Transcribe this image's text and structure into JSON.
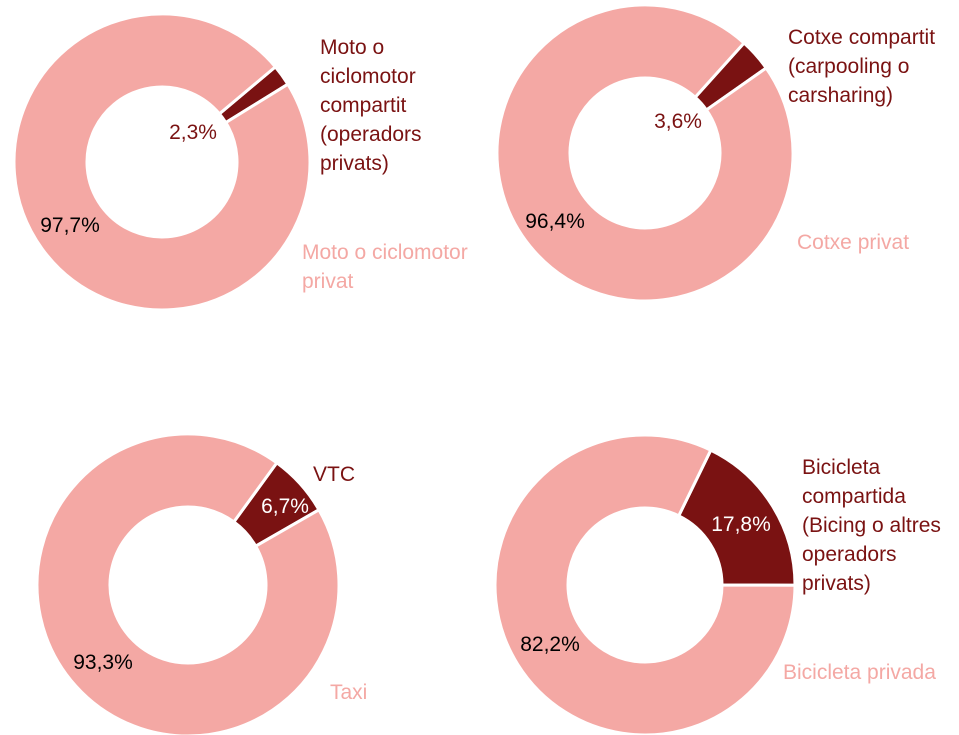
{
  "chart_data": [
    {
      "type": "pie",
      "categories": [
        "Moto o ciclomotor compartit (operadors privats)",
        "Moto o ciclomotor privat"
      ],
      "values": [
        2.3,
        97.7
      ],
      "value_labels": [
        "2,3%",
        "97,7%"
      ],
      "colors": [
        "#7a1212",
        "#f4a8a4"
      ]
    },
    {
      "type": "pie",
      "categories": [
        "Cotxe compartit (carpooling o carsharing)",
        "Cotxe privat"
      ],
      "values": [
        3.6,
        96.4
      ],
      "value_labels": [
        "3,6%",
        "96,4%"
      ],
      "colors": [
        "#7a1212",
        "#f4a8a4"
      ]
    },
    {
      "type": "pie",
      "categories": [
        "VTC",
        "Taxi"
      ],
      "values": [
        6.7,
        93.3
      ],
      "value_labels": [
        "6,7%",
        "93,3%"
      ],
      "colors": [
        "#7a1212",
        "#f4a8a4"
      ]
    },
    {
      "type": "pie",
      "categories": [
        "Bicicleta compartida (Bicing o altres operadors privats)",
        "Bicicleta privada"
      ],
      "values": [
        17.8,
        82.2
      ],
      "value_labels": [
        "17,8%",
        "82,2%"
      ],
      "colors": [
        "#7a1212",
        "#f4a8a4"
      ]
    }
  ]
}
